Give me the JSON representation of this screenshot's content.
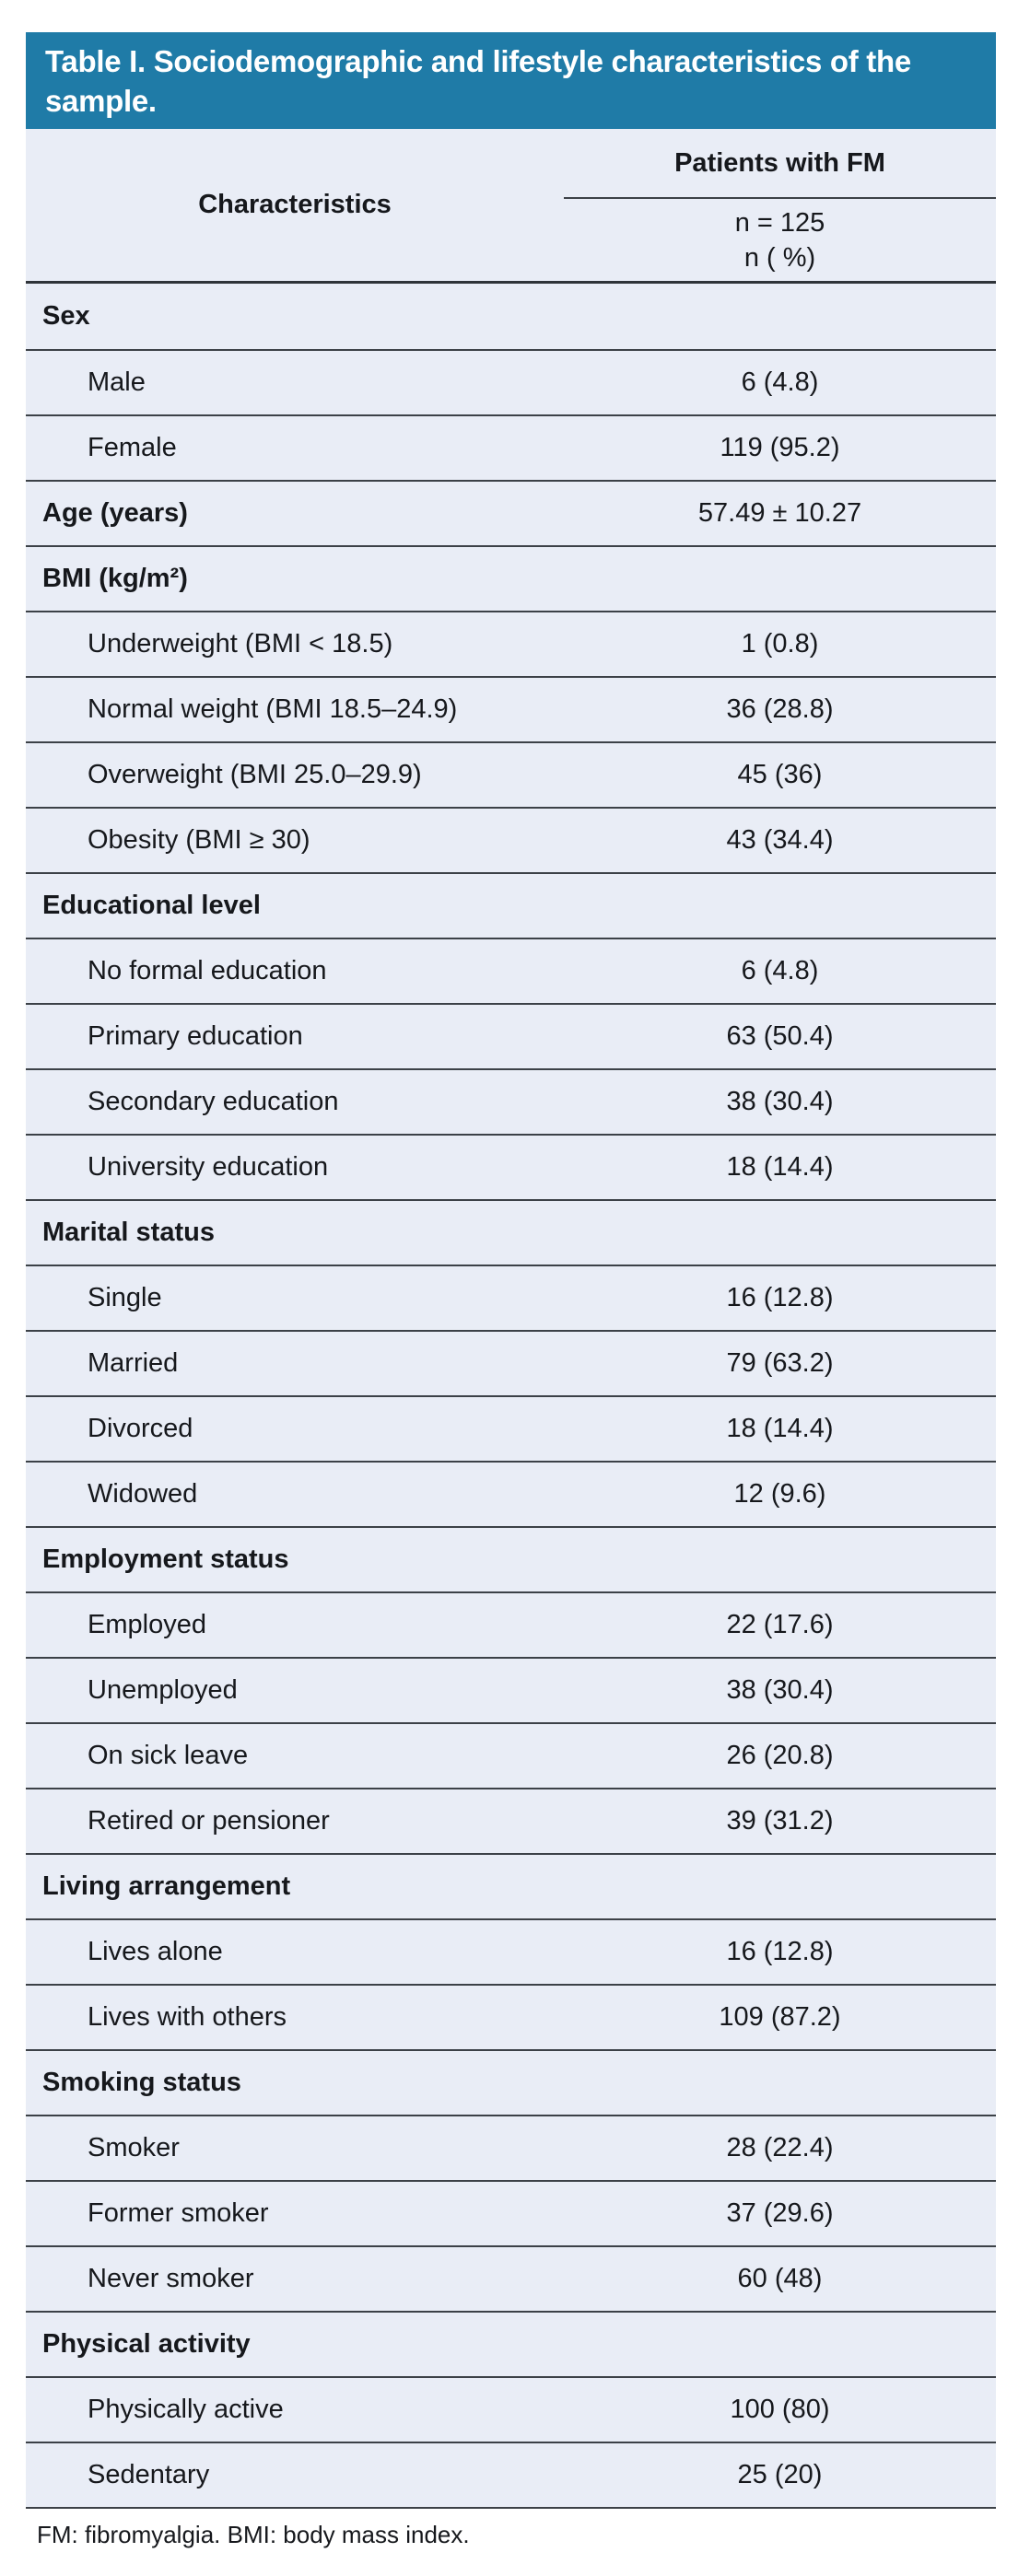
{
  "title": "Table I. Sociodemographic and lifestyle characteristics of the sample.",
  "header": {
    "characteristics_label": "Characteristics",
    "group_label": "Patients with FM",
    "subhead_line1": "n = 125",
    "subhead_line2": "n ( %)"
  },
  "table": {
    "rows": [
      {
        "type": "section",
        "label": "Sex",
        "value": ""
      },
      {
        "type": "item",
        "label": "Male",
        "value": "6 (4.8)"
      },
      {
        "type": "item",
        "label": "Female",
        "value": "119 (95.2)"
      },
      {
        "type": "section-value",
        "label": "Age (years)",
        "value": "57.49 ± 10.27"
      },
      {
        "type": "section",
        "label": "BMI (kg/m²)",
        "value": ""
      },
      {
        "type": "item",
        "label": "Underweight (BMI < 18.5)",
        "value": "1 (0.8)"
      },
      {
        "type": "item",
        "label": "Normal weight (BMI 18.5–24.9)",
        "value": "36 (28.8)"
      },
      {
        "type": "item",
        "label": "Overweight (BMI 25.0–29.9)",
        "value": "45 (36)"
      },
      {
        "type": "item",
        "label": "Obesity (BMI ≥ 30)",
        "value": "43 (34.4)"
      },
      {
        "type": "section",
        "label": "Educational level",
        "value": ""
      },
      {
        "type": "item",
        "label": "No formal education",
        "value": "6 (4.8)"
      },
      {
        "type": "item",
        "label": "Primary education",
        "value": "63 (50.4)"
      },
      {
        "type": "item",
        "label": "Secondary education",
        "value": "38 (30.4)"
      },
      {
        "type": "item",
        "label": "University education",
        "value": "18 (14.4)"
      },
      {
        "type": "section",
        "label": "Marital status",
        "value": ""
      },
      {
        "type": "item",
        "label": "Single",
        "value": "16 (12.8)"
      },
      {
        "type": "item",
        "label": "Married",
        "value": "79 (63.2)"
      },
      {
        "type": "item",
        "label": "Divorced",
        "value": "18 (14.4)"
      },
      {
        "type": "item",
        "label": "Widowed",
        "value": "12 (9.6)"
      },
      {
        "type": "section",
        "label": "Employment status",
        "value": ""
      },
      {
        "type": "item",
        "label": "Employed",
        "value": "22 (17.6)"
      },
      {
        "type": "item",
        "label": "Unemployed",
        "value": "38 (30.4)"
      },
      {
        "type": "item",
        "label": "On sick leave",
        "value": "26 (20.8)"
      },
      {
        "type": "item",
        "label": "Retired or pensioner",
        "value": "39 (31.2)"
      },
      {
        "type": "section",
        "label": "Living arrangement",
        "value": ""
      },
      {
        "type": "item",
        "label": "Lives alone",
        "value": "16 (12.8)"
      },
      {
        "type": "item",
        "label": "Lives with others",
        "value": "109 (87.2)"
      },
      {
        "type": "section",
        "label": "Smoking status",
        "value": ""
      },
      {
        "type": "item",
        "label": "Smoker",
        "value": "28 (22.4)"
      },
      {
        "type": "item",
        "label": "Former smoker",
        "value": "37 (29.6)"
      },
      {
        "type": "item",
        "label": "Never smoker",
        "value": "60 (48)"
      },
      {
        "type": "section",
        "label": "Physical activity",
        "value": ""
      },
      {
        "type": "item",
        "label": "Physically active",
        "value": "100 (80)"
      },
      {
        "type": "item",
        "label": "Sedentary",
        "value": "25 (20)"
      }
    ]
  },
  "footnote": "FM: fibromyalgia. BMI: body mass index.",
  "colors": {
    "header_bar": "#1f7ba7",
    "title_text": "#ffffff",
    "row_bg": "#e9edf6",
    "rule": "#3c4147",
    "text": "#16181c"
  }
}
